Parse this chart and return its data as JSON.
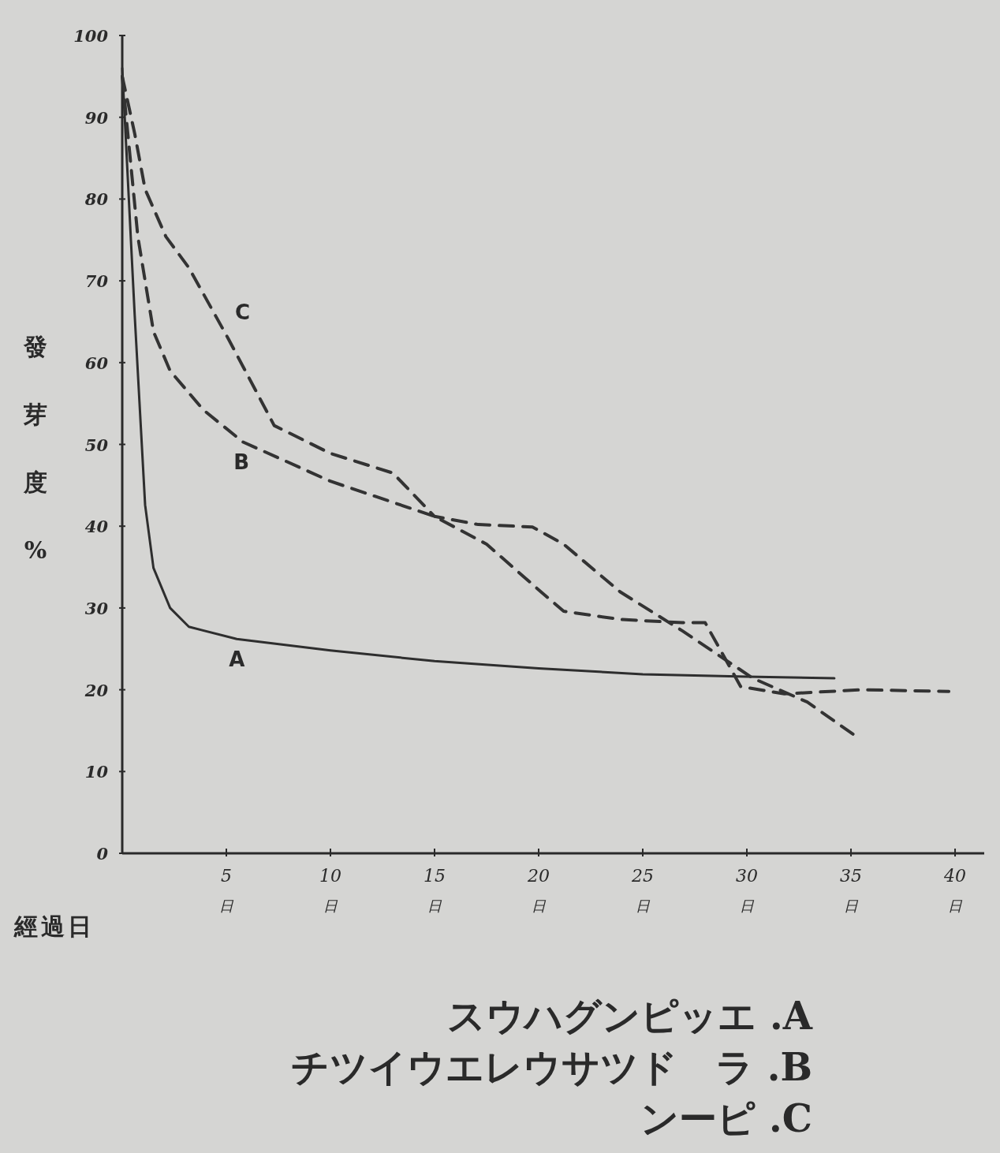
{
  "chart_data": {
    "type": "line",
    "ylabel": "發芽度%",
    "xlabel": "經過日",
    "xlim": [
      0,
      41.4
    ],
    "ylim": [
      0,
      100
    ],
    "xticks": [
      {
        "value": 5,
        "label": "5$_{日}$"
      },
      {
        "value": 10,
        "label": "10$_{日}$"
      },
      {
        "value": 15,
        "label": "15$_{日}$"
      },
      {
        "value": 20,
        "label": "20$_{日}$"
      },
      {
        "value": 25,
        "label": "25$_{日}$"
      },
      {
        "value": 30,
        "label": "30$_{日}$"
      },
      {
        "value": 35,
        "label": "35$_{日}$"
      },
      {
        "value": 40,
        "label": "40$_{日}$"
      }
    ],
    "yticks": [
      0,
      10,
      20,
      30,
      40,
      50,
      60,
      70,
      80,
      90,
      100
    ],
    "grid": false,
    "marker": "none",
    "series": [
      {
        "name": "A",
        "color": "#2e2e2e",
        "line_style": "solid",
        "x": [
          0,
          0.6,
          1.1,
          1.5,
          2.3,
          3.2,
          5.5,
          10,
          15,
          20,
          25,
          30,
          34.2
        ],
        "values": [
          96,
          65.8,
          42.6,
          34.9,
          30,
          27.7,
          26.2,
          24.8,
          23.5,
          22.6,
          21.9,
          21.6,
          21.4
        ]
      },
      {
        "name": "B",
        "color": "#333333",
        "line_style": "dashed",
        "x": [
          0,
          0.75,
          1.5,
          2.3,
          3.9,
          5.8,
          10,
          15,
          17.5,
          20.1,
          21.2,
          23.9,
          26.9,
          28,
          29.7,
          31.8,
          35.5,
          39.7
        ],
        "values": [
          95,
          75.4,
          63.8,
          59,
          54.2,
          50.3,
          45.5,
          41.2,
          37.8,
          32,
          29.6,
          28.6,
          28.2,
          28.2,
          20.4,
          19.5,
          20,
          19.8
        ]
      },
      {
        "name": "C",
        "color": "#333333",
        "line_style": "dashed",
        "x": [
          0,
          0.6,
          1.1,
          2.1,
          3.2,
          5.1,
          7.3,
          10,
          13,
          15,
          17.1,
          19.7,
          21.2,
          23.9,
          26.9,
          30.3,
          32.9,
          35.3
        ],
        "values": [
          95,
          88,
          81.2,
          75.4,
          71.6,
          62.9,
          52.3,
          48.9,
          46.5,
          41.2,
          40.2,
          39.9,
          37.8,
          32,
          27.2,
          21.4,
          18.5,
          14.2
        ]
      }
    ],
    "annotations": [
      "スウハグンピッエ .A",
      "チツイウエレウサツド　ラ .B",
      "ンーピ .C"
    ]
  }
}
